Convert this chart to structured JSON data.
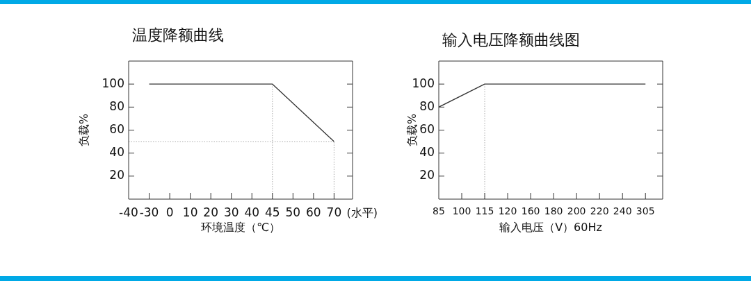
{
  "chart_data": [
    {
      "type": "line",
      "title": "温度降额曲线",
      "xlabel": "环境温度（℃）",
      "ylabel": "负载%",
      "categories": [
        "-40",
        "-30",
        "0",
        "10",
        "20",
        "30",
        "40",
        "45",
        "50",
        "60",
        "70"
      ],
      "series": [
        {
          "color": "#333333",
          "values": [
            null,
            100,
            100,
            100,
            100,
            100,
            100,
            100,
            null,
            null,
            50
          ]
        }
      ],
      "ylim": [
        0,
        120
      ],
      "yticks": [
        20,
        40,
        60,
        80,
        100
      ],
      "grid": false,
      "legend": false,
      "marker": "none",
      "line_style": "solid",
      "ref_lines": [
        {
          "axis": "x",
          "value": "45",
          "color": "#aaaaaa",
          "line_style": "dotted"
        },
        {
          "axis": "x",
          "value": "70",
          "color": "#aaaaaa",
          "line_style": "dotted"
        },
        {
          "axis": "y",
          "value": 50,
          "color": "#aaaaaa",
          "line_style": "dotted"
        }
      ],
      "annotations": [
        "(水平)"
      ]
    },
    {
      "type": "line",
      "title": "输入电压降额曲线图",
      "xlabel": "输入电压（V）60Hz",
      "ylabel": "负载%",
      "categories": [
        "85",
        "100",
        "115",
        "120",
        "160",
        "180",
        "200",
        "220",
        "240",
        "305"
      ],
      "series": [
        {
          "color": "#333333",
          "values": [
            80,
            null,
            100,
            null,
            null,
            null,
            null,
            null,
            null,
            100
          ]
        }
      ],
      "ylim": [
        0,
        120
      ],
      "yticks": [
        20,
        40,
        60,
        80,
        100
      ],
      "grid": false,
      "legend": false,
      "marker": "none",
      "line_style": "solid",
      "ref_lines": [
        {
          "axis": "x",
          "value": "115",
          "color": "#aaaaaa",
          "line_style": "dotted"
        }
      ]
    }
  ]
}
